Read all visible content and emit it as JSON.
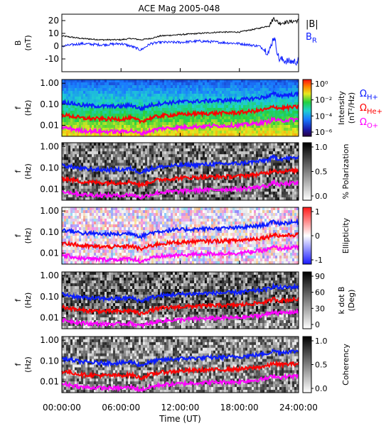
{
  "title": "ACE Mag 2005-048",
  "xlabel": "Time (UT)",
  "x_ticks": [
    "00:00:00",
    "06:00:00",
    "12:00:00",
    "18:00:00",
    "24:00:00"
  ],
  "colors": {
    "h_plus": "#0b1cff",
    "he_plus": "#ff0000",
    "o_plus": "#ff00ff",
    "bmag": "#000000"
  },
  "panels": [
    {
      "ylabel": "B",
      "yunit": "(nT)",
      "y_ticks": [
        "20",
        "10",
        "0",
        "-10"
      ]
    },
    {
      "ylabel": "f",
      "yunit": "(Hz)",
      "y_ticks": [
        "1.00",
        "0.10",
        "0.01"
      ],
      "cbar_label": "Intensity",
      "cbar_unit": "(nT²/Hz)",
      "cbar_ticks": [
        "10⁰",
        "10⁻²",
        "10⁻⁴",
        "10⁻⁶"
      ]
    },
    {
      "ylabel": "f",
      "yunit": "(Hz)",
      "y_ticks": [
        "1.00",
        "0.10",
        "0.01"
      ],
      "cbar_label": "% Polarization",
      "cbar_ticks": [
        "1.0",
        "0.5",
        "0.0"
      ]
    },
    {
      "ylabel": "f",
      "yunit": "(Hz)",
      "y_ticks": [
        "1.00",
        "0.10",
        "0.01"
      ],
      "cbar_label": "Ellipticity",
      "cbar_ticks": [
        "1",
        "0",
        "-1"
      ]
    },
    {
      "ylabel": "f",
      "yunit": "(Hz)",
      "y_ticks": [
        "1.00",
        "0.10",
        "0.01"
      ],
      "cbar_label": "k dot B",
      "cbar_unit": "(Deg)",
      "cbar_ticks": [
        "90",
        "60",
        "30",
        "0"
      ]
    },
    {
      "ylabel": "f",
      "yunit": "(Hz)",
      "y_ticks": [
        "1.00",
        "0.10",
        "0.01"
      ],
      "cbar_label": "Coherency",
      "cbar_ticks": [
        "1.0",
        "0.5",
        "0.0"
      ]
    }
  ],
  "legend": {
    "b_mag": "|B|",
    "b_r_main": "B",
    "b_r_sub": "R",
    "h_main": "Ω",
    "h_sub": "H+",
    "he_main": "Ω",
    "he_sub": "He+",
    "o_main": "Ω",
    "o_sub": "O+"
  },
  "chart_data": {
    "type": "line",
    "title": "ACE Mag 2005-048",
    "xlabel": "Time (UT)",
    "x": [
      0,
      2,
      4,
      6,
      7,
      8,
      9,
      10,
      12,
      14,
      16,
      18,
      20,
      21,
      21.5,
      22,
      23,
      24
    ],
    "series_b": [
      {
        "name": "|B|",
        "values": [
          8,
          6,
          5,
          5,
          6,
          5,
          6,
          8,
          9,
          10,
          11,
          11,
          14,
          16,
          22,
          18,
          19,
          20
        ]
      },
      {
        "name": "B_R",
        "values": [
          0,
          2,
          1,
          2,
          0,
          -3,
          2,
          3,
          3,
          4,
          3,
          2,
          0,
          -5,
          8,
          -10,
          -12,
          -12
        ]
      }
    ],
    "b_ylim": [
      -20,
      25
    ],
    "f_ylim": [
      0.003,
      1.5
    ],
    "f_scale": "log",
    "series_f": [
      {
        "name": "ΩH+",
        "values": [
          0.13,
          0.09,
          0.08,
          0.08,
          0.09,
          0.06,
          0.09,
          0.11,
          0.13,
          0.14,
          0.15,
          0.16,
          0.2,
          0.24,
          0.32,
          0.26,
          0.28,
          0.3
        ]
      },
      {
        "name": "ΩHe+",
        "values": [
          0.032,
          0.022,
          0.02,
          0.02,
          0.022,
          0.015,
          0.022,
          0.028,
          0.033,
          0.036,
          0.038,
          0.04,
          0.05,
          0.06,
          0.08,
          0.065,
          0.07,
          0.075
        ]
      },
      {
        "name": "ΩO+",
        "values": [
          0.008,
          0.0055,
          0.005,
          0.005,
          0.0055,
          0.004,
          0.0055,
          0.007,
          0.008,
          0.009,
          0.0095,
          0.01,
          0.0125,
          0.015,
          0.02,
          0.016,
          0.018,
          0.019
        ]
      }
    ],
    "grid": false
  }
}
